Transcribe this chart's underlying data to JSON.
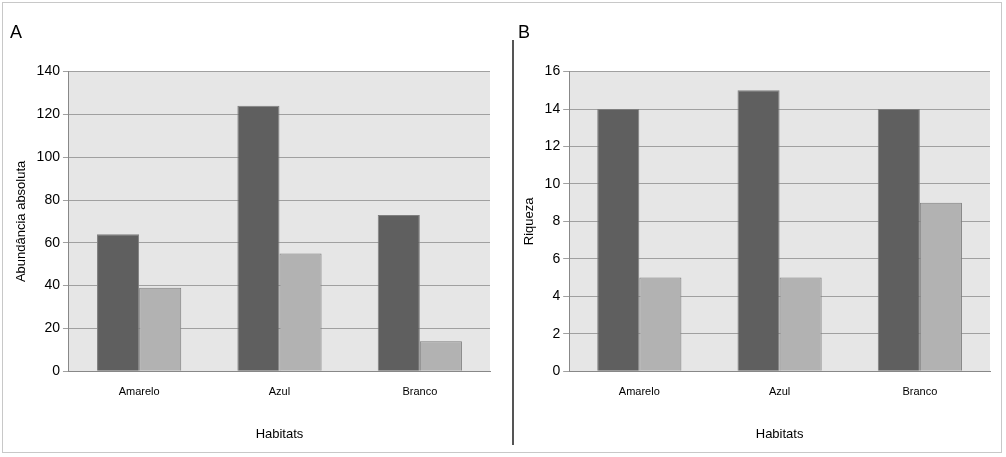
{
  "chart_data": [
    {
      "type": "bar",
      "title": "A",
      "xlabel": "Habitats",
      "ylabel": "Abundância absoluta",
      "categories": [
        "Amarelo",
        "Azul",
        "Branco"
      ],
      "series": [
        {
          "color": "#5f5f5f",
          "values": [
            64,
            124,
            73
          ]
        },
        {
          "color": "#b2b2b2",
          "values": [
            39,
            55,
            14
          ]
        }
      ],
      "ylim": [
        0,
        140
      ],
      "yticks": [
        0,
        20,
        40,
        60,
        80,
        100,
        120,
        140
      ],
      "grid": "y",
      "legend": false
    },
    {
      "type": "bar",
      "title": "B",
      "xlabel": "Habitats",
      "ylabel": "Riqueza",
      "categories": [
        "Amarelo",
        "Azul",
        "Branco"
      ],
      "series": [
        {
          "color": "#5f5f5f",
          "values": [
            14,
            15,
            14
          ]
        },
        {
          "color": "#b2b2b2",
          "values": [
            5,
            5,
            9
          ]
        }
      ],
      "ylim": [
        0,
        16
      ],
      "yticks": [
        0,
        2,
        4,
        6,
        8,
        10,
        12,
        14,
        16
      ],
      "grid": "y",
      "legend": false
    }
  ]
}
